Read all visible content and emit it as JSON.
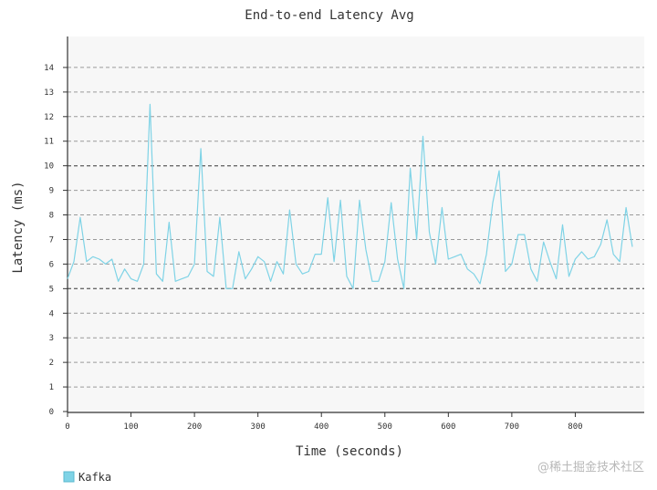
{
  "watermark": "@稀土掘金技术社区",
  "chart_data": {
    "type": "line",
    "title": "End-to-end Latency Avg",
    "xlabel": "Time (seconds)",
    "ylabel": "Latency (ms)",
    "xlim": [
      0,
      900
    ],
    "ylim": [
      0,
      15
    ],
    "x_ticks": [
      0,
      100,
      200,
      300,
      400,
      500,
      600,
      700,
      800
    ],
    "y_ticks": [
      0,
      1,
      2,
      3,
      4,
      5,
      6,
      7,
      8,
      9,
      10,
      11,
      12,
      13,
      14
    ],
    "grid": true,
    "legend_position": "bottom-left",
    "colors": {
      "series": "#7fd3e6",
      "legend_swatch": "#7fd3e6",
      "plot_bg": "#f7f7f7"
    },
    "series": [
      {
        "name": "Kafka",
        "x": [
          0,
          10,
          20,
          30,
          40,
          50,
          60,
          70,
          80,
          90,
          100,
          110,
          120,
          130,
          140,
          150,
          160,
          170,
          180,
          190,
          200,
          210,
          220,
          230,
          240,
          250,
          260,
          270,
          280,
          290,
          300,
          310,
          320,
          330,
          340,
          350,
          360,
          370,
          380,
          390,
          400,
          410,
          420,
          430,
          440,
          450,
          460,
          470,
          480,
          490,
          500,
          510,
          520,
          530,
          540,
          550,
          560,
          570,
          580,
          590,
          600,
          610,
          620,
          630,
          640,
          650,
          660,
          670,
          680,
          690,
          700,
          710,
          720,
          730,
          740,
          750,
          760,
          770,
          780,
          790,
          800,
          810,
          820,
          830,
          840,
          850,
          860,
          870,
          880,
          890
        ],
        "values": [
          5.4,
          6.1,
          7.9,
          6.1,
          6.3,
          6.2,
          6.0,
          6.2,
          5.3,
          5.8,
          5.4,
          5.3,
          6.0,
          12.5,
          5.6,
          5.3,
          7.7,
          5.3,
          5.4,
          5.5,
          6.0,
          10.7,
          5.7,
          5.5,
          7.9,
          5.0,
          5.0,
          6.5,
          5.4,
          5.8,
          6.3,
          6.1,
          5.3,
          6.1,
          5.6,
          8.2,
          6.0,
          5.6,
          5.7,
          6.4,
          6.4,
          8.7,
          6.1,
          8.6,
          5.5,
          5.0,
          8.6,
          6.6,
          5.3,
          5.3,
          6.1,
          8.5,
          6.2,
          5.0,
          9.9,
          7.0,
          11.2,
          7.3,
          6.0,
          8.3,
          6.2,
          6.3,
          6.4,
          5.8,
          5.6,
          5.2,
          6.4,
          8.5,
          9.8,
          5.7,
          6.0,
          7.2,
          7.2,
          5.8,
          5.3,
          6.9,
          6.1,
          5.4,
          7.6,
          5.5,
          6.2,
          6.5,
          6.2,
          6.3,
          6.8,
          7.8,
          6.4,
          6.1,
          8.3,
          6.7
        ]
      }
    ]
  }
}
